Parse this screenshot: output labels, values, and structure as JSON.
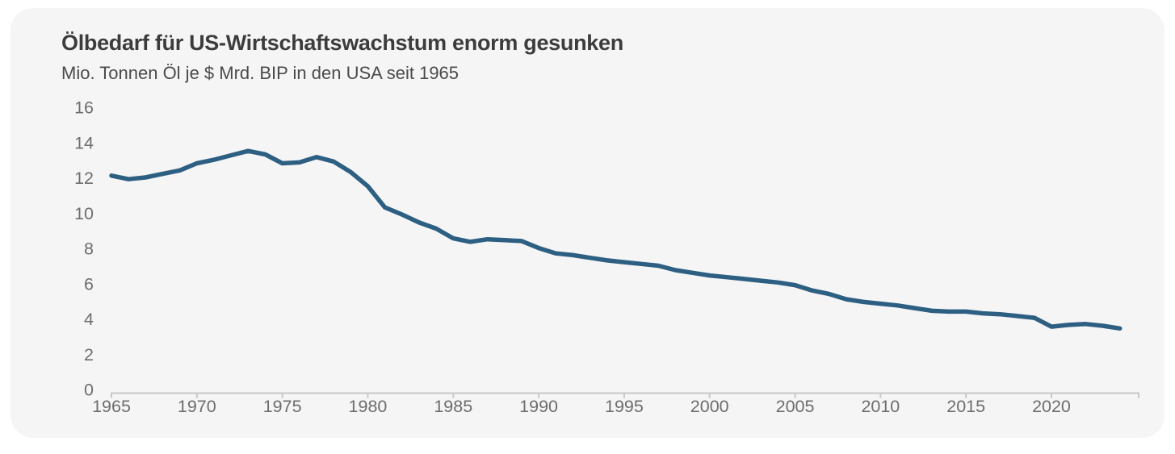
{
  "card": {
    "title": "Ölbedarf für US-Wirtschaftswachstum enorm gesunken",
    "subtitle": "Mio. Tonnen Öl je $ Mrd. BIP in den USA seit 1965"
  },
  "colors": {
    "line": "#2d5f82",
    "card_background": "#f5f5f6",
    "page_background": "#ffffff",
    "axis_line": "#c8c8c8",
    "tick_text": "#6d6d6d",
    "title_text": "#3c3c3c",
    "subtitle_text": "#4a4a4a"
  },
  "chart_data": {
    "type": "line",
    "title": "Ölbedarf für US-Wirtschaftswachstum enorm gesunken",
    "subtitle": "Mio. Tonnen Öl je $ Mrd. BIP in den USA seit 1965",
    "xlabel": "",
    "ylabel": "",
    "grid": false,
    "legend": "none",
    "ylim": [
      0,
      16
    ],
    "xlim": [
      1965,
      2025
    ],
    "yticks": [
      0,
      2,
      4,
      6,
      8,
      10,
      12,
      14,
      16
    ],
    "xticks": [
      1965,
      1970,
      1975,
      1980,
      1985,
      1990,
      1995,
      2000,
      2005,
      2010,
      2015,
      2020
    ],
    "x": [
      1965,
      1966,
      1967,
      1968,
      1969,
      1970,
      1971,
      1972,
      1973,
      1974,
      1975,
      1976,
      1977,
      1978,
      1979,
      1980,
      1981,
      1982,
      1983,
      1984,
      1985,
      1986,
      1987,
      1988,
      1989,
      1990,
      1991,
      1992,
      1993,
      1994,
      1995,
      1996,
      1997,
      1998,
      1999,
      2000,
      2001,
      2002,
      2003,
      2004,
      2005,
      2006,
      2007,
      2008,
      2009,
      2010,
      2011,
      2012,
      2013,
      2014,
      2015,
      2016,
      2017,
      2018,
      2019,
      2020,
      2021,
      2022,
      2023,
      2024
    ],
    "values": [
      12.2,
      12.0,
      12.1,
      12.3,
      12.5,
      12.9,
      13.1,
      13.35,
      13.6,
      13.4,
      12.9,
      12.95,
      13.25,
      13.0,
      12.4,
      11.6,
      10.4,
      10.0,
      9.55,
      9.2,
      8.65,
      8.45,
      8.6,
      8.55,
      8.5,
      8.1,
      7.8,
      7.7,
      7.55,
      7.4,
      7.3,
      7.2,
      7.1,
      6.85,
      6.7,
      6.55,
      6.45,
      6.35,
      6.25,
      6.15,
      6.0,
      5.7,
      5.5,
      5.2,
      5.05,
      4.95,
      4.85,
      4.7,
      4.55,
      4.5,
      4.5,
      4.4,
      4.35,
      4.25,
      4.15,
      3.65,
      3.75,
      3.8,
      3.7,
      3.55
    ]
  }
}
